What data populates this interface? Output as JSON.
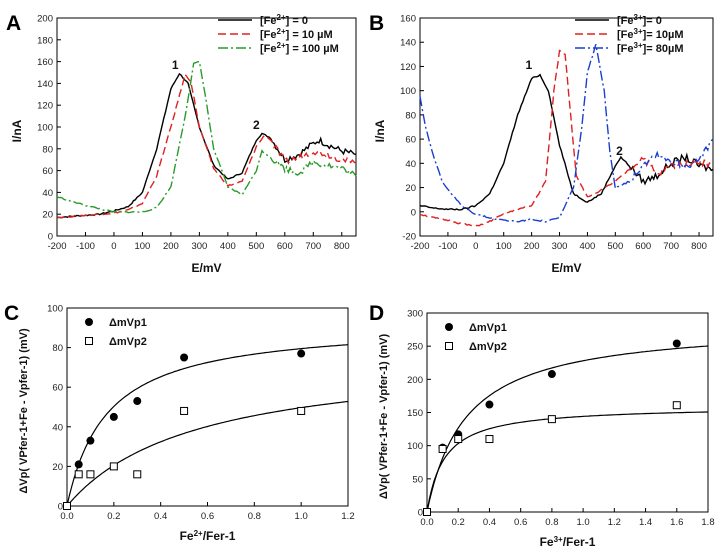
{
  "chart_data": [
    {
      "panel": "A",
      "type": "line",
      "xlabel": "E/mV",
      "ylabel": "I/nA",
      "xlim": [
        -200,
        850
      ],
      "ylim": [
        0,
        200
      ],
      "xticks": [
        "-200",
        "-100",
        "0",
        "100",
        "200",
        "300",
        "400",
        "500",
        "600",
        "700",
        "800"
      ],
      "yticks": [
        "0",
        "20",
        "40",
        "60",
        "80",
        "100",
        "120",
        "140",
        "160",
        "180",
        "200"
      ],
      "legend_position": "top-right",
      "annotations": [
        "1",
        "2"
      ],
      "series": [
        {
          "legend": "[Fe2+] = 0",
          "ion": "Fe",
          "charge": "2+",
          "eq": "] = 0",
          "color": "#000000",
          "dash": "solid",
          "x": [
            -200,
            -150,
            -100,
            -50,
            0,
            50,
            100,
            150,
            200,
            230,
            260,
            300,
            350,
            400,
            450,
            500,
            520,
            550,
            600,
            650,
            700,
            720,
            750,
            800,
            850
          ],
          "y": [
            17,
            18,
            19,
            20,
            23,
            27,
            40,
            80,
            135,
            149,
            140,
            100,
            65,
            52,
            58,
            88,
            94,
            90,
            70,
            75,
            85,
            88,
            84,
            78,
            75
          ]
        },
        {
          "legend": "[Fe2+] = 10 µM",
          "ion": "Fe",
          "charge": "2+",
          "eq": "] = 10 µM",
          "color": "#e02020",
          "dash": "8,4",
          "x": [
            -200,
            -150,
            -100,
            -50,
            0,
            50,
            100,
            150,
            200,
            250,
            270,
            300,
            350,
            400,
            450,
            500,
            530,
            550,
            600,
            650,
            700,
            750,
            800,
            850
          ],
          "y": [
            17,
            18,
            19,
            20,
            21,
            24,
            30,
            55,
            100,
            148,
            142,
            100,
            62,
            46,
            50,
            82,
            93,
            88,
            68,
            72,
            78,
            75,
            70,
            66
          ]
        },
        {
          "legend": "[Fe2+] = 100 µM",
          "ion": "Fe",
          "charge": "2+",
          "eq": "] = 100 µM",
          "color": "#2a9a2a",
          "dash": "10,3,2,3",
          "x": [
            -200,
            -150,
            -100,
            -50,
            0,
            50,
            100,
            150,
            200,
            250,
            280,
            300,
            320,
            350,
            400,
            450,
            500,
            520,
            550,
            600,
            650,
            700,
            750,
            800,
            850
          ],
          "y": [
            36,
            32,
            28,
            25,
            22,
            22,
            22,
            26,
            45,
            110,
            158,
            160,
            130,
            80,
            45,
            38,
            60,
            78,
            72,
            62,
            58,
            68,
            65,
            62,
            55
          ]
        }
      ]
    },
    {
      "panel": "B",
      "type": "line",
      "xlabel": "E/mV",
      "ylabel": "I/nA",
      "xlim": [
        -200,
        850
      ],
      "ylim": [
        -20,
        160
      ],
      "xticks": [
        "-200",
        "-100",
        "0",
        "100",
        "200",
        "300",
        "400",
        "500",
        "600",
        "700",
        "800"
      ],
      "yticks": [
        "-20",
        "0",
        "20",
        "40",
        "60",
        "80",
        "100",
        "120",
        "140",
        "160"
      ],
      "legend_position": "top-right",
      "annotations": [
        "1",
        "2"
      ],
      "series": [
        {
          "legend": "[Fe3+]= 0",
          "ion": "Fe",
          "charge": "3+",
          "eq": "]= 0",
          "color": "#000000",
          "dash": "solid",
          "x": [
            -200,
            -150,
            -100,
            -50,
            0,
            50,
            100,
            150,
            200,
            230,
            260,
            300,
            350,
            400,
            450,
            500,
            520,
            550,
            600,
            650,
            700,
            750,
            800,
            850
          ],
          "y": [
            5,
            3,
            2,
            2,
            5,
            15,
            40,
            80,
            110,
            113,
            100,
            55,
            15,
            8,
            15,
            38,
            45,
            38,
            25,
            30,
            40,
            45,
            38,
            35
          ]
        },
        {
          "legend": "[Fe3+]= 10µM",
          "ion": "Fe",
          "charge": "3+",
          "eq": "]= 10µM",
          "color": "#e02020",
          "dash": "8,4",
          "x": [
            -200,
            -150,
            -100,
            -50,
            0,
            50,
            100,
            150,
            200,
            250,
            280,
            300,
            320,
            340,
            360,
            400,
            450,
            500,
            550,
            600,
            650,
            700,
            750,
            800,
            850
          ],
          "y": [
            -2,
            -5,
            -7,
            -10,
            -12,
            -8,
            -2,
            2,
            5,
            25,
            100,
            133,
            130,
            80,
            30,
            12,
            18,
            25,
            35,
            45,
            30,
            38,
            40,
            42,
            38
          ]
        },
        {
          "legend": "[Fe3+]= 80µM",
          "ion": "Fe",
          "charge": "3+",
          "eq": "]= 80µM",
          "color": "#1a3fd0",
          "dash": "10,3,2,3",
          "x": [
            -200,
            -180,
            -150,
            -120,
            -100,
            -50,
            0,
            50,
            100,
            150,
            200,
            250,
            300,
            350,
            380,
            400,
            430,
            460,
            480,
            500,
            550,
            600,
            650,
            700,
            750,
            800,
            850
          ],
          "y": [
            95,
            70,
            45,
            25,
            18,
            5,
            -2,
            -5,
            -7,
            -8,
            -6,
            -8,
            -5,
            20,
            70,
            115,
            138,
            100,
            50,
            20,
            25,
            40,
            48,
            42,
            38,
            42,
            60
          ]
        }
      ]
    },
    {
      "panel": "C",
      "type": "scatter",
      "xlabel": "Fe2+/Fer-1",
      "xlabel_main": "Fe",
      "xlabel_sup": "2+",
      "xlabel_rest": "/Fer-1",
      "ylabel": "ΔVp( VPfer-1+Fe - Vpfer-1)  (mV)",
      "xlim": [
        0,
        1.2
      ],
      "ylim": [
        0,
        100
      ],
      "xticks": [
        "0.0",
        "0.2",
        "0.4",
        "0.6",
        "0.8",
        "1.0",
        "1.2"
      ],
      "yticks": [
        "0",
        "20",
        "40",
        "60",
        "80",
        "100"
      ],
      "legend_position": "top-left",
      "series": [
        {
          "legend": "ΔmVp1",
          "marker": "filled-circle",
          "x": [
            0,
            0.05,
            0.1,
            0.2,
            0.3,
            0.5,
            1.0
          ],
          "y": [
            0,
            21,
            33,
            45,
            53,
            75,
            77
          ],
          "fit": {
            "vmax": 93,
            "k": 0.17
          }
        },
        {
          "legend": "ΔmVp2",
          "marker": "open-square",
          "x": [
            0,
            0.05,
            0.1,
            0.2,
            0.3,
            0.5,
            1.0
          ],
          "y": [
            0,
            16,
            16,
            20,
            16,
            48,
            48
          ],
          "fit": {
            "vmax": 77,
            "k": 0.55
          }
        }
      ]
    },
    {
      "panel": "D",
      "type": "scatter",
      "xlabel": "Fe3+/Fer-1",
      "xlabel_main": "Fe",
      "xlabel_sup": "3+",
      "xlabel_rest": "/Fer-1",
      "ylabel": "ΔVp( VPfer-1+Fe - Vpfer-1)  (mV)",
      "xlim": [
        0,
        1.8
      ],
      "ylim": [
        0,
        300
      ],
      "xticks": [
        "0.0",
        "0.2",
        "0.4",
        "0.6",
        "0.8",
        "1.0",
        "1.2",
        "1.4",
        "1.6",
        "1.8"
      ],
      "yticks": [
        "0",
        "50",
        "100",
        "150",
        "200",
        "250",
        "300"
      ],
      "legend_position": "top-left",
      "series": [
        {
          "legend": "ΔmVp1",
          "marker": "filled-circle",
          "x": [
            0,
            0.1,
            0.2,
            0.4,
            0.8,
            1.6
          ],
          "y": [
            0,
            97,
            117,
            162,
            208,
            254
          ],
          "fit": {
            "vmax": 285,
            "k": 0.25
          }
        },
        {
          "legend": "ΔmVp2",
          "marker": "open-square",
          "x": [
            0,
            0.1,
            0.2,
            0.4,
            0.8,
            1.6
          ],
          "y": [
            0,
            95,
            110,
            110,
            140,
            161
          ],
          "fit": {
            "vmax": 160,
            "k": 0.11
          }
        }
      ]
    }
  ]
}
